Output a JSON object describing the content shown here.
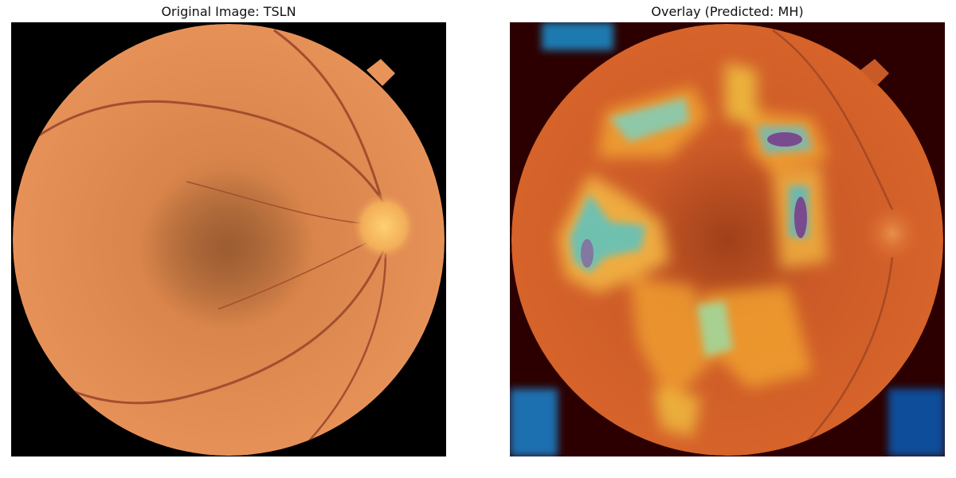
{
  "figure": {
    "left_panel": {
      "title": "Original Image: TSLN"
    },
    "right_panel": {
      "title": "Overlay (Predicted: MH)"
    }
  },
  "colors": {
    "fundus_base": "#e08a4c",
    "fundus_dark": "#b86a3a",
    "optic_disc": "#f3b05a",
    "vessel": "#a04a30",
    "background_black": "#000000",
    "heatmap_background": "#2a0000",
    "heat_red": "#e03010",
    "heat_yellow": "#f4d040",
    "heat_cyan": "#6ec0b8",
    "heat_purple": "#7a4a90",
    "heat_blue": "#0050a0"
  }
}
